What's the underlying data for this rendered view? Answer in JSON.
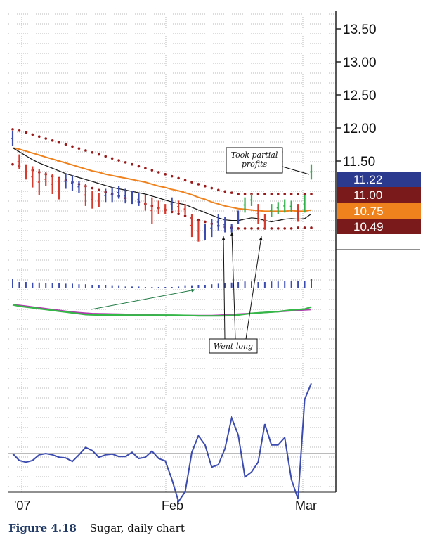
{
  "chart_data": {
    "type": "line",
    "caption_label": "Figure 4.18",
    "caption_text": "Sugar, daily chart",
    "price_axis": {
      "ticks": [
        "13.50",
        "13.00",
        "12.50",
        "12.00",
        "11.50"
      ],
      "ylim": [
        10.1,
        13.7
      ]
    },
    "price_tags": [
      {
        "value": 11.22,
        "label": "11.22",
        "color": "#2b3a8f"
      },
      {
        "value": 11.0,
        "label": "11.00",
        "color": "#7a1a1a"
      },
      {
        "value": 10.75,
        "label": "10.75",
        "color": "#f0821e"
      },
      {
        "value": 10.49,
        "label": "10.49",
        "color": "#7a1a1a"
      }
    ],
    "x_labels": [
      "'07",
      "Feb",
      "Mar"
    ],
    "bars": [
      {
        "high": 11.95,
        "low": 11.73,
        "color": "blue"
      },
      {
        "high": 11.6,
        "low": 11.38,
        "color": "red"
      },
      {
        "high": 11.45,
        "low": 11.22,
        "color": "red"
      },
      {
        "high": 11.42,
        "low": 11.1,
        "color": "red"
      },
      {
        "high": 11.38,
        "low": 10.98,
        "color": "red"
      },
      {
        "high": 11.33,
        "low": 11.12,
        "color": "red"
      },
      {
        "high": 11.3,
        "low": 11.0,
        "color": "red"
      },
      {
        "high": 11.25,
        "low": 10.92,
        "color": "red"
      },
      {
        "high": 11.3,
        "low": 11.08,
        "color": "blue"
      },
      {
        "high": 11.28,
        "low": 11.05,
        "color": "blue"
      },
      {
        "high": 11.2,
        "low": 11.02,
        "color": "blue"
      },
      {
        "high": 11.15,
        "low": 10.82,
        "color": "red"
      },
      {
        "high": 11.05,
        "low": 10.78,
        "color": "red"
      },
      {
        "high": 11.02,
        "low": 10.8,
        "color": "red"
      },
      {
        "high": 11.08,
        "low": 10.88,
        "color": "blue"
      },
      {
        "high": 11.1,
        "low": 10.88,
        "color": "blue"
      },
      {
        "high": 11.12,
        "low": 10.93,
        "color": "blue"
      },
      {
        "high": 11.08,
        "low": 10.86,
        "color": "blue"
      },
      {
        "high": 11.05,
        "low": 10.85,
        "color": "blue"
      },
      {
        "high": 11.02,
        "low": 10.82,
        "color": "blue"
      },
      {
        "high": 10.98,
        "low": 10.75,
        "color": "red"
      },
      {
        "high": 10.95,
        "low": 10.55,
        "color": "red"
      },
      {
        "high": 10.9,
        "low": 10.7,
        "color": "red"
      },
      {
        "high": 10.85,
        "low": 10.7,
        "color": "red"
      },
      {
        "high": 10.95,
        "low": 10.75,
        "color": "blue"
      },
      {
        "high": 10.9,
        "low": 10.72,
        "color": "red"
      },
      {
        "high": 10.85,
        "low": 10.7,
        "color": "red"
      },
      {
        "high": 10.7,
        "low": 10.35,
        "color": "red"
      },
      {
        "high": 10.6,
        "low": 10.28,
        "color": "red"
      },
      {
        "high": 10.55,
        "low": 10.3,
        "color": "blue"
      },
      {
        "high": 10.62,
        "low": 10.35,
        "color": "blue"
      },
      {
        "high": 10.7,
        "low": 10.45,
        "color": "blue"
      },
      {
        "high": 10.65,
        "low": 10.42,
        "color": "blue"
      },
      {
        "high": 10.55,
        "low": 10.42,
        "color": "blue"
      },
      {
        "high": 10.75,
        "low": 10.55,
        "color": "blue"
      },
      {
        "high": 10.95,
        "low": 10.72,
        "color": "green"
      },
      {
        "high": 11.0,
        "low": 10.82,
        "color": "green"
      },
      {
        "high": 10.85,
        "low": 10.55,
        "color": "red"
      },
      {
        "high": 10.7,
        "low": 10.48,
        "color": "red"
      },
      {
        "high": 10.85,
        "low": 10.65,
        "color": "green"
      },
      {
        "high": 10.88,
        "low": 10.7,
        "color": "green"
      },
      {
        "high": 10.92,
        "low": 10.72,
        "color": "green"
      },
      {
        "high": 10.9,
        "low": 10.73,
        "color": "green"
      },
      {
        "high": 10.85,
        "low": 10.58,
        "color": "red"
      },
      {
        "high": 10.98,
        "low": 10.72,
        "color": "green"
      },
      {
        "high": 11.45,
        "low": 11.22,
        "color": "green"
      }
    ],
    "orange_ma": [
      11.7,
      11.68,
      11.65,
      11.62,
      11.59,
      11.56,
      11.53,
      11.5,
      11.47,
      11.44,
      11.41,
      11.38,
      11.35,
      11.33,
      11.3,
      11.28,
      11.26,
      11.24,
      11.22,
      11.2,
      11.18,
      11.15,
      11.12,
      11.1,
      11.07,
      11.05,
      11.02,
      10.99,
      10.95,
      10.92,
      10.88,
      10.85,
      10.82,
      10.8,
      10.78,
      10.77,
      10.76,
      10.75,
      10.74,
      10.74,
      10.74,
      10.74,
      10.75,
      10.74,
      10.74,
      10.76
    ],
    "black_ma": [
      11.7,
      11.64,
      11.58,
      11.52,
      11.47,
      11.43,
      11.39,
      11.35,
      11.31,
      11.28,
      11.25,
      11.22,
      11.19,
      11.16,
      11.13,
      11.1,
      11.08,
      11.06,
      11.04,
      11.02,
      11.0,
      10.97,
      10.94,
      10.91,
      10.88,
      10.86,
      10.84,
      10.8,
      10.76,
      10.72,
      10.68,
      10.64,
      10.61,
      10.6,
      10.6,
      10.62,
      10.64,
      10.63,
      10.6,
      10.58,
      10.6,
      10.62,
      10.63,
      10.62,
      10.63,
      10.7
    ],
    "upper_dots": [
      11.98,
      11.96,
      11.93,
      11.9,
      11.87,
      11.84,
      11.81,
      11.78,
      11.75,
      11.72,
      11.69,
      11.66,
      11.63,
      11.6,
      11.57,
      11.54,
      11.51,
      11.48,
      11.45,
      11.42,
      11.39,
      11.36,
      11.33,
      11.3,
      11.27,
      11.24,
      11.21,
      11.18,
      11.15,
      11.12,
      11.09,
      11.06,
      11.04,
      11.02,
      11.0,
      11.0,
      11.0,
      11.0,
      11.0,
      11.0,
      11.0,
      11.0,
      11.0,
      11.0,
      11.0,
      11.0
    ],
    "lower_dots": [
      11.45,
      11.42,
      11.39,
      11.36,
      11.33,
      11.3,
      11.27,
      11.24,
      11.21,
      11.18,
      11.15,
      11.12,
      11.09,
      11.06,
      11.03,
      11.0,
      10.97,
      10.94,
      10.91,
      10.88,
      10.85,
      10.82,
      10.79,
      10.76,
      10.73,
      10.7,
      10.67,
      10.64,
      10.61,
      10.58,
      10.55,
      10.52,
      10.5,
      10.49,
      10.48,
      10.48,
      10.48,
      10.48,
      10.48,
      10.48,
      10.48,
      10.48,
      10.48,
      10.49,
      10.49,
      10.49
    ],
    "histogram": [
      0.15,
      0.1,
      0.1,
      0.09,
      0.09,
      0.08,
      0.08,
      0.08,
      0.07,
      0.07,
      0.06,
      0.06,
      0.05,
      0.05,
      0.04,
      0.03,
      0.03,
      0.02,
      0.02,
      0.02,
      0.01,
      0.01,
      0.0,
      0.0,
      -0.01,
      -0.02,
      -0.03,
      -0.03,
      -0.04,
      -0.05,
      -0.06,
      -0.07,
      -0.08,
      -0.09,
      -0.1,
      -0.11,
      -0.11,
      -0.1,
      -0.1,
      -0.11,
      -0.11,
      -0.12,
      -0.12,
      -0.12,
      -0.12,
      -0.15
    ],
    "green_line": [
      0.2,
      0.05,
      -0.05,
      -0.15,
      -0.25,
      -0.35,
      -0.45,
      -0.55,
      -0.65,
      -0.75,
      -0.85,
      -0.95,
      -0.98,
      -1.0,
      -1.0,
      -1.01,
      -1.01,
      -1.02,
      -1.02,
      -1.02,
      -1.02,
      -1.02,
      -1.02,
      -1.02,
      -1.02,
      -1.03,
      -1.05,
      -1.07,
      -1.09,
      -1.1,
      -1.1,
      -1.1,
      -1.08,
      -1.05,
      -1.0,
      -0.9,
      -0.8,
      -0.75,
      -0.7,
      -0.65,
      -0.6,
      -0.5,
      -0.4,
      -0.35,
      -0.3,
      -0.05
    ],
    "magenta_line": [
      0.2,
      0.15,
      0.05,
      -0.05,
      -0.15,
      -0.25,
      -0.35,
      -0.45,
      -0.55,
      -0.65,
      -0.72,
      -0.78,
      -0.83,
      -0.85,
      -0.87,
      -0.88,
      -0.9,
      -0.92,
      -0.95,
      -0.97,
      -0.98,
      -1.0,
      -1.01,
      -1.02,
      -1.03,
      -1.04,
      -1.05,
      -1.06,
      -1.07,
      -1.07,
      -1.06,
      -1.03,
      -0.99,
      -0.95,
      -0.9,
      -0.85,
      -0.8,
      -0.75,
      -0.7,
      -0.65,
      -0.6,
      -0.55,
      -0.5,
      -0.45,
      -0.4,
      -0.35
    ],
    "oscillator": [
      0.0,
      -0.28,
      -0.35,
      -0.28,
      -0.05,
      0.0,
      -0.05,
      -0.15,
      -0.18,
      -0.32,
      -0.05,
      0.25,
      0.12,
      -0.15,
      -0.05,
      -0.02,
      -0.12,
      -0.12,
      0.05,
      -0.2,
      -0.15,
      0.1,
      -0.2,
      -0.3,
      -1.05,
      -1.95,
      -1.55,
      0.05,
      0.72,
      0.35,
      -0.55,
      -0.45,
      0.2,
      1.45,
      0.75,
      -0.95,
      -0.75,
      -0.35,
      1.2,
      0.35,
      0.35,
      0.65,
      -1.05,
      -1.85,
      2.2,
      2.85
    ],
    "annotations": [
      {
        "text_lines": [
          "Took partial",
          "profits"
        ]
      },
      {
        "text_lines": [
          "Went long"
        ]
      }
    ]
  }
}
